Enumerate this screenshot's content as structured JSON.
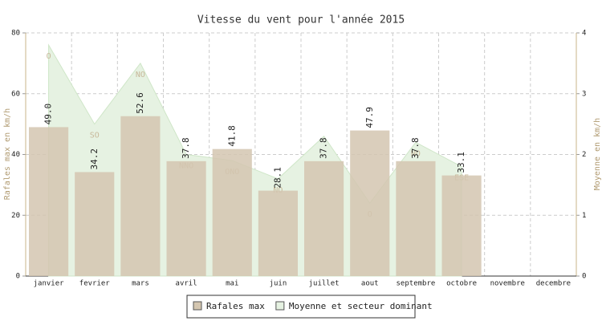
{
  "chart_data": {
    "type": "bar",
    "title": "Vitesse du vent pour l'année 2015",
    "categories": [
      "janvier",
      "fevrier",
      "mars",
      "avril",
      "mai",
      "juin",
      "juillet",
      "aout",
      "septembre",
      "octobre",
      "novembre",
      "decembre"
    ],
    "y_label": "Rafales max en km/h",
    "y2_label": "Moyenne en km/h",
    "ylim": [
      0,
      80
    ],
    "yticks": [
      0,
      20,
      40,
      60,
      80
    ],
    "y2lim": [
      0,
      4
    ],
    "y2ticks": [
      0,
      1,
      2,
      3,
      4
    ],
    "grid": true,
    "legend": "bottom",
    "series": [
      {
        "name": "Rafales max",
        "type": "bar",
        "color": "#d4c6b0",
        "values": [
          49.0,
          34.2,
          52.6,
          37.8,
          41.8,
          28.1,
          37.8,
          47.9,
          37.8,
          33.1,
          null,
          null
        ],
        "value_labels": [
          "49.0",
          "34.2",
          "52.6",
          "37.8",
          "41.8",
          "28.1",
          "37.8",
          "47.9",
          "37.8",
          "33.1",
          null,
          null
        ]
      },
      {
        "name": "Moyenne et secteur dominant",
        "type": "area",
        "axis": "y2",
        "color": "#e6f2e2",
        "values": [
          3.8,
          2.5,
          3.5,
          2.0,
          1.9,
          1.6,
          2.3,
          1.2,
          2.2,
          1.8,
          null,
          null
        ],
        "direction_labels": [
          "O",
          "SO",
          "NO",
          "NNO",
          "ONO",
          "NO",
          null,
          "O",
          "NO",
          "ESE",
          null,
          null
        ]
      }
    ]
  }
}
